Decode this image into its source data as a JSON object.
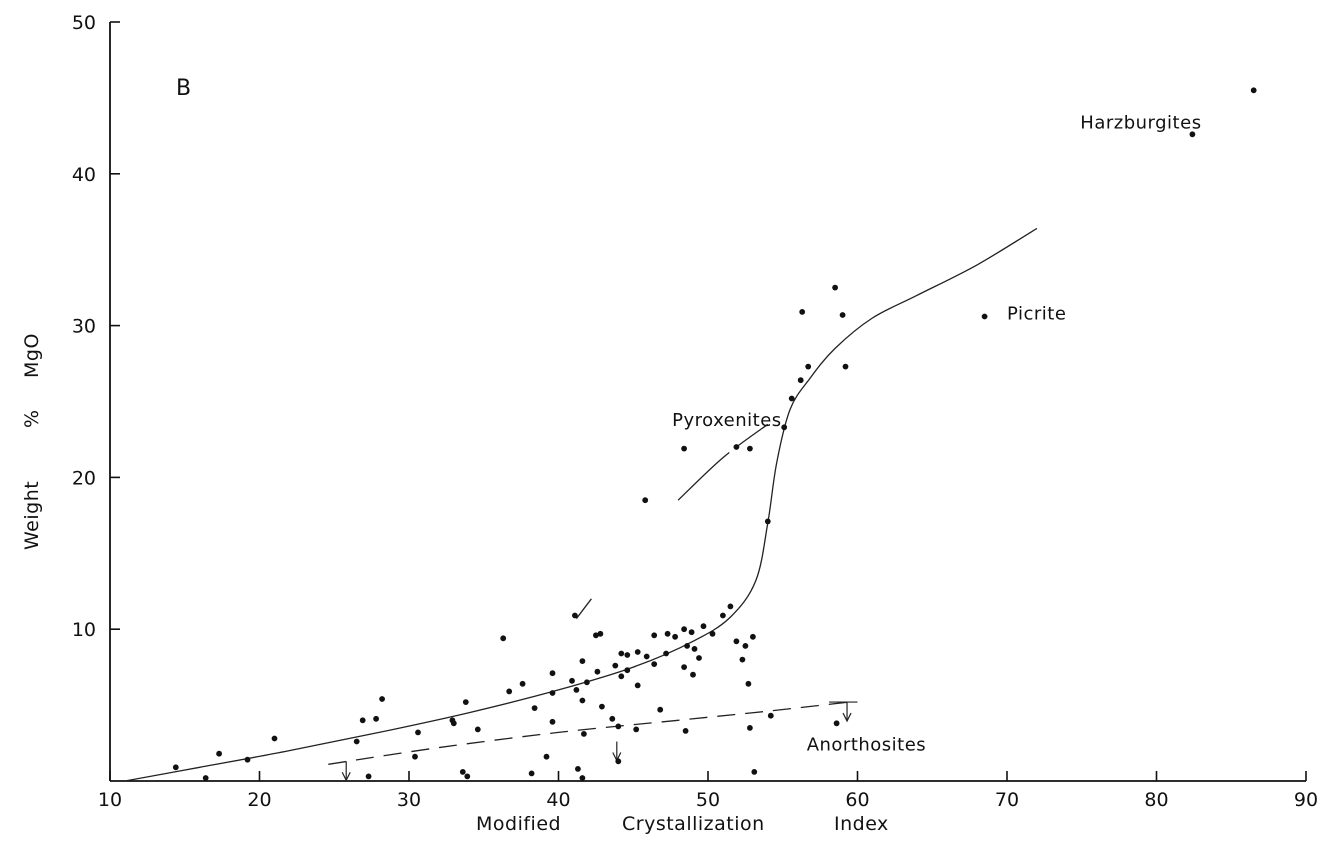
{
  "chart_data": {
    "type": "scatter",
    "panel_label": "B",
    "xlabel_words": [
      "Modified",
      "Crystallization",
      "Index"
    ],
    "ylabel_words": [
      "Weight",
      "%",
      "MgO"
    ],
    "xlim": [
      10,
      90
    ],
    "ylim": [
      0,
      50
    ],
    "x_ticks": [
      10,
      20,
      30,
      40,
      50,
      60,
      70,
      80,
      90
    ],
    "y_ticks": [
      10,
      20,
      30,
      40,
      50
    ],
    "x_tick_labels": [
      "10",
      "20",
      "30",
      "40",
      "50",
      "60",
      "70",
      "80",
      "90"
    ],
    "y_tick_labels": [
      "10",
      "20",
      "30",
      "40",
      "50"
    ],
    "annotations": [
      {
        "text": "Harzburgites",
        "x": 74.9,
        "y": 43.0
      },
      {
        "text": "Picrite",
        "x": 70.0,
        "y": 30.4
      },
      {
        "text": "Pyroxenites",
        "x": 47.6,
        "y": 23.4
      },
      {
        "text": "Anorthosites",
        "x": 56.6,
        "y": 2.0
      }
    ],
    "points": [
      [
        86.5,
        45.5
      ],
      [
        82.4,
        42.6
      ],
      [
        68.5,
        30.6
      ],
      [
        58.5,
        32.5
      ],
      [
        56.3,
        30.9
      ],
      [
        59.0,
        30.7
      ],
      [
        56.7,
        27.3
      ],
      [
        59.2,
        27.3
      ],
      [
        56.2,
        26.4
      ],
      [
        55.6,
        25.2
      ],
      [
        55.1,
        23.3
      ],
      [
        48.4,
        21.9
      ],
      [
        51.9,
        22.0
      ],
      [
        52.8,
        21.9
      ],
      [
        45.8,
        18.5
      ],
      [
        54.0,
        17.1
      ],
      [
        41.1,
        10.9
      ],
      [
        51.5,
        11.5
      ],
      [
        51.0,
        10.9
      ],
      [
        36.3,
        9.4
      ],
      [
        42.8,
        9.7
      ],
      [
        46.4,
        9.6
      ],
      [
        47.3,
        9.7
      ],
      [
        47.8,
        9.5
      ],
      [
        48.4,
        10.0
      ],
      [
        48.9,
        9.8
      ],
      [
        49.7,
        10.2
      ],
      [
        50.3,
        9.7
      ],
      [
        51.9,
        9.2
      ],
      [
        52.5,
        8.9
      ],
      [
        53.0,
        9.5
      ],
      [
        44.2,
        8.4
      ],
      [
        44.6,
        8.3
      ],
      [
        45.3,
        8.5
      ],
      [
        45.9,
        8.2
      ],
      [
        47.2,
        8.4
      ],
      [
        48.6,
        8.9
      ],
      [
        49.1,
        8.7
      ],
      [
        49.4,
        8.1
      ],
      [
        49.0,
        7.0
      ],
      [
        48.4,
        7.5
      ],
      [
        46.4,
        7.7
      ],
      [
        44.6,
        7.3
      ],
      [
        43.8,
        7.6
      ],
      [
        44.2,
        6.9
      ],
      [
        45.3,
        6.3
      ],
      [
        42.6,
        7.2
      ],
      [
        41.9,
        6.5
      ],
      [
        41.2,
        6.0
      ],
      [
        40.9,
        6.6
      ],
      [
        41.6,
        7.9
      ],
      [
        39.6,
        7.1
      ],
      [
        39.6,
        5.8
      ],
      [
        38.4,
        4.8
      ],
      [
        37.6,
        6.4
      ],
      [
        36.7,
        5.9
      ],
      [
        39.6,
        3.9
      ],
      [
        41.6,
        5.3
      ],
      [
        42.9,
        4.9
      ],
      [
        43.6,
        4.1
      ],
      [
        44.0,
        3.6
      ],
      [
        45.2,
        3.4
      ],
      [
        46.8,
        4.7
      ],
      [
        48.5,
        3.3
      ],
      [
        52.7,
        6.4
      ],
      [
        52.3,
        8.0
      ],
      [
        52.8,
        3.5
      ],
      [
        54.2,
        4.3
      ],
      [
        58.6,
        3.8
      ],
      [
        42.5,
        9.6
      ],
      [
        33.8,
        5.2
      ],
      [
        32.9,
        4.0
      ],
      [
        33.0,
        3.8
      ],
      [
        34.6,
        3.4
      ],
      [
        30.6,
        3.2
      ],
      [
        30.4,
        1.6
      ],
      [
        28.2,
        5.4
      ],
      [
        27.8,
        4.1
      ],
      [
        26.9,
        4.0
      ],
      [
        26.5,
        2.6
      ],
      [
        21.0,
        2.8
      ],
      [
        19.2,
        1.4
      ],
      [
        17.3,
        1.8
      ],
      [
        14.4,
        0.9
      ],
      [
        16.4,
        0.2
      ],
      [
        27.3,
        0.3
      ],
      [
        33.6,
        0.6
      ],
      [
        33.9,
        0.3
      ],
      [
        38.2,
        0.5
      ],
      [
        39.2,
        1.6
      ],
      [
        41.3,
        0.8
      ],
      [
        41.6,
        0.2
      ],
      [
        41.7,
        3.1
      ],
      [
        44.0,
        1.3
      ],
      [
        53.1,
        0.6
      ]
    ],
    "curves": {
      "solid_trend": [
        [
          11,
          0.0
        ],
        [
          16,
          0.9
        ],
        [
          22,
          2.0
        ],
        [
          28,
          3.2
        ],
        [
          34,
          4.5
        ],
        [
          40,
          6.0
        ],
        [
          45,
          7.5
        ],
        [
          49,
          9.2
        ],
        [
          51.5,
          10.8
        ],
        [
          53.2,
          13.2
        ],
        [
          54.0,
          17.0
        ],
        [
          54.6,
          21.0
        ],
        [
          55.5,
          24.5
        ],
        [
          56.8,
          26.5
        ],
        [
          58.5,
          28.5
        ],
        [
          61,
          30.5
        ],
        [
          64,
          32.0
        ],
        [
          68,
          34.0
        ],
        [
          72,
          36.4
        ]
      ],
      "pyroxenite_line": [
        [
          48.0,
          18.5
        ],
        [
          51,
          21.3
        ],
        [
          54,
          23.5
        ]
      ],
      "dashed_lower": [
        [
          24.6,
          1.1
        ],
        [
          32,
          2.2
        ],
        [
          40,
          3.2
        ],
        [
          48,
          4.0
        ],
        [
          54,
          4.6
        ],
        [
          59.4,
          5.2
        ]
      ],
      "small_segment": [
        [
          41.2,
          10.7
        ],
        [
          42.2,
          12.0
        ]
      ]
    }
  }
}
